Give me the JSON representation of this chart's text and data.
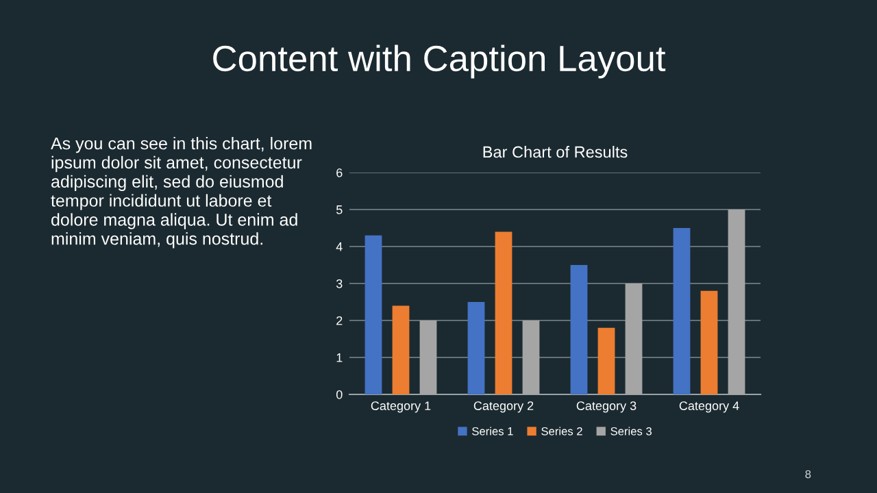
{
  "chart_data": {
    "type": "bar",
    "title": "Content with Caption Layout",
    "subtitle": "Bar Chart of Results",
    "categories": [
      "Category 1",
      "Category 2",
      "Category 3",
      "Category 4"
    ],
    "series": [
      {
        "name": "Series 1",
        "color": "#4472c4",
        "values": [
          4.3,
          2.5,
          3.5,
          4.5
        ]
      },
      {
        "name": "Series 2",
        "color": "#ed7d31",
        "values": [
          2.4,
          4.4,
          1.8,
          2.8
        ]
      },
      {
        "name": "Series 3",
        "color": "#a5a5a5",
        "values": [
          2,
          2,
          3,
          5
        ]
      }
    ],
    "ylim": [
      0,
      6
    ],
    "yticks": [
      0,
      1,
      2,
      3,
      4,
      5,
      6
    ],
    "grid": "y",
    "legend": "bottom",
    "annotations": [
      "As you can see in this chart, lorem\nipsum dolor sit amet, consectetur\nadipiscing elit, sed do eiusmod\ntempor incididunt ut labore et\ndolore magna aliqua. Ut enim ad\nminim veniam, quis nostrud.",
      "8"
    ]
  }
}
